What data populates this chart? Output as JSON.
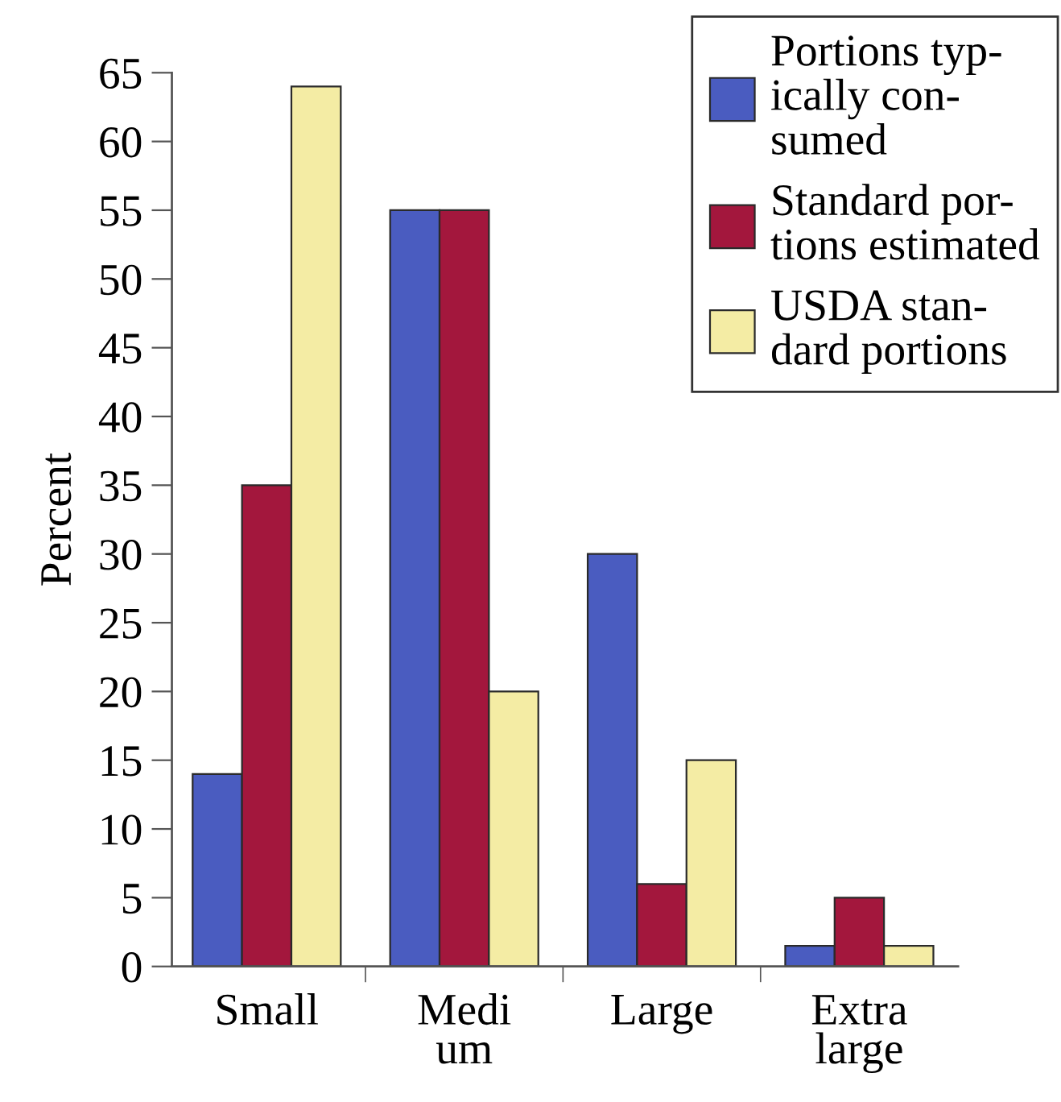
{
  "chart_data": {
    "type": "bar",
    "ylabel": "Percent",
    "categories": [
      "Small",
      "Medi\num",
      "Large",
      "Extra\nlarge"
    ],
    "series": [
      {
        "name": "Portions typ-\nically con-\nsumed",
        "color": "#4a5cc0",
        "values": [
          14,
          55,
          30,
          1.5
        ]
      },
      {
        "name": "Standard por-\ntions estimated",
        "color": "#a3173d",
        "values": [
          35,
          55,
          6,
          5
        ]
      },
      {
        "name": "USDA stan-\ndard portions",
        "color": "#f4eca4",
        "values": [
          64,
          20,
          15,
          1.5
        ]
      }
    ],
    "ylim": [
      0,
      65
    ],
    "yticks": [
      0,
      5,
      10,
      15,
      20,
      25,
      30,
      35,
      40,
      45,
      50,
      55,
      60,
      65
    ],
    "legend": "top right",
    "grid": false
  }
}
